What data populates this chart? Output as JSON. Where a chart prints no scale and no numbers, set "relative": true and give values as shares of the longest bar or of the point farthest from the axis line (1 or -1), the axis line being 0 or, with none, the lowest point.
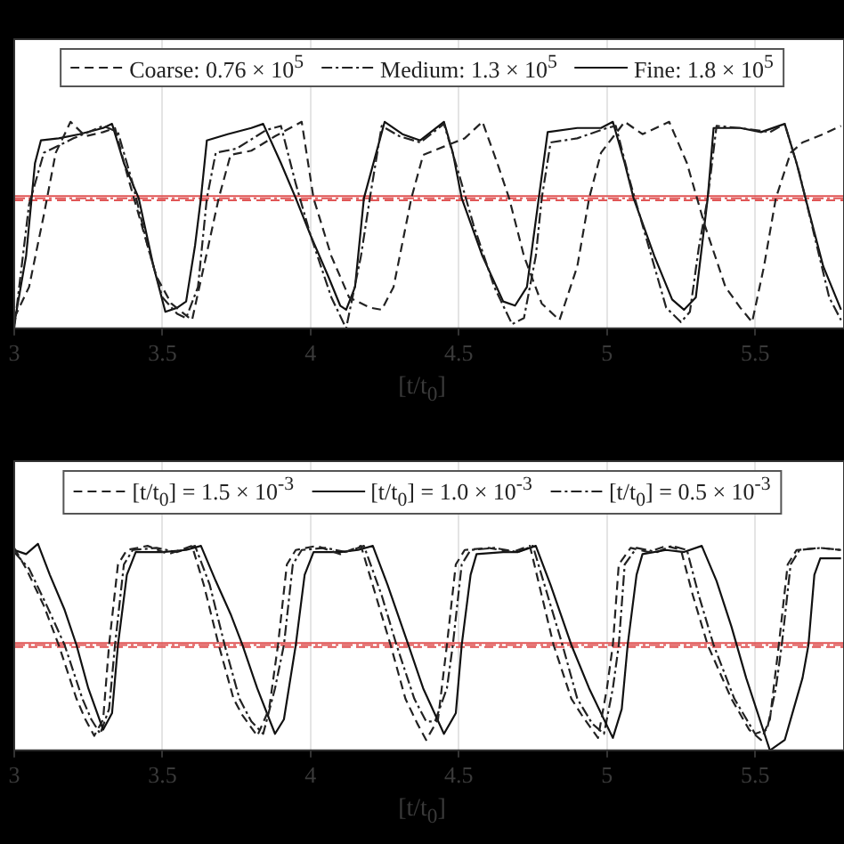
{
  "chart_data": [
    {
      "type": "line",
      "relative": true,
      "xlabel": "[t/t$_{0}$]",
      "xlim": [
        3,
        5.8
      ],
      "xticks": [
        3,
        3.5,
        4,
        4.5,
        5,
        5.5
      ],
      "grid": "x",
      "legend": "top",
      "marker": "none",
      "series": [
        {
          "name": "Coarse: 0.76 × 10$^{5}$",
          "color": "#222222",
          "line_style": "dashed",
          "x": [
            3.0,
            3.05,
            3.1,
            3.14,
            3.19,
            3.24,
            3.3,
            3.34,
            3.38,
            3.43,
            3.48,
            3.53,
            3.6,
            3.64,
            3.69,
            3.73,
            3.8,
            3.88,
            3.97,
            4.01,
            4.07,
            4.13,
            4.2,
            4.24,
            4.28,
            4.34,
            4.38,
            4.45,
            4.52,
            4.58,
            4.63,
            4.67,
            4.72,
            4.78,
            4.84,
            4.9,
            4.94,
            4.98,
            5.06,
            5.12,
            5.21,
            5.27,
            5.33,
            5.4,
            5.45,
            5.49,
            5.53,
            5.57,
            5.62,
            5.66,
            5.73,
            5.79
          ],
          "values": [
            0.05,
            0.2,
            0.55,
            0.85,
            1.0,
            0.93,
            0.95,
            0.97,
            0.75,
            0.5,
            0.25,
            0.12,
            0.04,
            0.3,
            0.63,
            0.84,
            0.86,
            0.93,
            1.0,
            0.63,
            0.35,
            0.15,
            0.1,
            0.09,
            0.2,
            0.63,
            0.84,
            0.88,
            0.92,
            1.0,
            0.8,
            0.63,
            0.35,
            0.12,
            0.04,
            0.3,
            0.63,
            0.85,
            1.0,
            0.94,
            1.0,
            0.8,
            0.5,
            0.2,
            0.1,
            0.03,
            0.3,
            0.63,
            0.85,
            0.9,
            0.94,
            0.98
          ]
        },
        {
          "name": "Medium: 1.3 × 10$^{5}$",
          "color": "#222222",
          "line_style": "dotted",
          "x": [
            3.0,
            3.05,
            3.1,
            3.2,
            3.3,
            3.35,
            3.4,
            3.45,
            3.5,
            3.55,
            3.58,
            3.62,
            3.65,
            3.68,
            3.75,
            3.85,
            3.9,
            3.95,
            4.0,
            4.07,
            4.12,
            4.17,
            4.2,
            4.24,
            4.3,
            4.37,
            4.45,
            4.5,
            4.55,
            4.62,
            4.68,
            4.72,
            4.76,
            4.78,
            4.81,
            4.9,
            5.0,
            5.03,
            5.08,
            5.14,
            5.2,
            5.25,
            5.28,
            5.31,
            5.34,
            5.37,
            5.45,
            5.55,
            5.6,
            5.65,
            5.7,
            5.75,
            5.79
          ],
          "values": [
            0.0,
            0.6,
            0.85,
            0.92,
            0.98,
            0.95,
            0.7,
            0.4,
            0.15,
            0.07,
            0.05,
            0.2,
            0.63,
            0.85,
            0.87,
            0.96,
            0.98,
            0.7,
            0.45,
            0.15,
            0.0,
            0.35,
            0.63,
            0.98,
            0.93,
            0.9,
            0.99,
            0.75,
            0.5,
            0.2,
            0.02,
            0.05,
            0.35,
            0.63,
            0.9,
            0.92,
            0.97,
            0.98,
            0.7,
            0.4,
            0.1,
            0.03,
            0.08,
            0.39,
            0.63,
            0.98,
            0.97,
            0.95,
            0.99,
            0.75,
            0.45,
            0.15,
            0.04
          ]
        },
        {
          "name": "Fine: 1.8 × 10$^{5}$",
          "color": "#111111",
          "line_style": "solid",
          "x": [
            3.0,
            3.04,
            3.07,
            3.09,
            3.15,
            3.22,
            3.3,
            3.33,
            3.37,
            3.42,
            3.47,
            3.51,
            3.55,
            3.58,
            3.61,
            3.63,
            3.65,
            3.72,
            3.8,
            3.84,
            3.9,
            3.95,
            4.0,
            4.06,
            4.1,
            4.12,
            4.15,
            4.18,
            4.25,
            4.31,
            4.37,
            4.45,
            4.48,
            4.51,
            4.58,
            4.65,
            4.69,
            4.73,
            4.77,
            4.8,
            4.9,
            4.98,
            5.02,
            5.06,
            5.09,
            5.16,
            5.22,
            5.26,
            5.3,
            5.34,
            5.36,
            5.45,
            5.52,
            5.6,
            5.64,
            5.67,
            5.73,
            5.79
          ],
          "values": [
            0.02,
            0.35,
            0.8,
            0.91,
            0.92,
            0.94,
            0.97,
            0.99,
            0.8,
            0.63,
            0.3,
            0.08,
            0.1,
            0.13,
            0.4,
            0.63,
            0.91,
            0.94,
            0.97,
            0.99,
            0.8,
            0.63,
            0.45,
            0.25,
            0.11,
            0.09,
            0.2,
            0.63,
            1.0,
            0.94,
            0.91,
            1.0,
            0.85,
            0.63,
            0.35,
            0.13,
            0.11,
            0.2,
            0.63,
            0.95,
            0.97,
            0.97,
            1.0,
            0.8,
            0.63,
            0.35,
            0.14,
            0.09,
            0.15,
            0.63,
            0.97,
            0.97,
            0.95,
            0.99,
            0.8,
            0.63,
            0.3,
            0.09
          ]
        }
      ],
      "ref_lines": [
        {
          "axis": "y",
          "value": 0.62,
          "color": "#e05555",
          "line_style": "dashed"
        },
        {
          "axis": "y",
          "value": 0.63,
          "color": "#e05555",
          "line_style": "dotted"
        },
        {
          "axis": "y",
          "value": 0.64,
          "color": "#e05555",
          "line_style": "solid"
        }
      ]
    },
    {
      "type": "line",
      "relative": true,
      "xlabel": "[t/t$_{0}$]",
      "xlim": [
        3,
        5.8
      ],
      "xticks": [
        3,
        3.5,
        4,
        4.5,
        5,
        5.5
      ],
      "grid": "x",
      "legend": "top",
      "marker": "none",
      "series": [
        {
          "name": "[t/t$_{0}$] = 1.5 × 10$^{-3}$",
          "color": "#222222",
          "line_style": "dashed",
          "x": [
            3.0,
            3.04,
            3.1,
            3.15,
            3.21,
            3.24,
            3.27,
            3.3,
            3.32,
            3.35,
            3.38,
            3.45,
            3.52,
            3.6,
            3.64,
            3.69,
            3.74,
            3.77,
            3.82,
            3.86,
            3.89,
            3.92,
            3.95,
            4.02,
            4.1,
            4.17,
            4.22,
            4.27,
            4.32,
            4.36,
            4.39,
            4.43,
            4.46,
            4.49,
            4.52,
            4.6,
            4.68,
            4.74,
            4.78,
            4.82,
            4.88,
            4.92,
            4.97,
            5.0,
            5.02,
            5.04,
            5.08,
            5.14,
            5.2,
            5.25,
            5.29,
            5.34,
            5.42,
            5.48,
            5.52,
            5.55,
            5.58,
            5.61,
            5.64,
            5.72,
            5.79
          ],
          "values": [
            0.98,
            0.88,
            0.7,
            0.51,
            0.25,
            0.15,
            0.07,
            0.15,
            0.51,
            0.9,
            0.97,
            0.99,
            0.95,
            0.99,
            0.8,
            0.51,
            0.25,
            0.17,
            0.07,
            0.2,
            0.51,
            0.9,
            0.97,
            0.99,
            0.95,
            0.99,
            0.75,
            0.51,
            0.25,
            0.13,
            0.05,
            0.15,
            0.51,
            0.9,
            0.97,
            0.98,
            0.96,
            0.99,
            0.75,
            0.51,
            0.25,
            0.16,
            0.06,
            0.3,
            0.51,
            0.9,
            0.98,
            0.96,
            0.99,
            0.97,
            0.75,
            0.51,
            0.25,
            0.1,
            0.05,
            0.15,
            0.51,
            0.9,
            0.97,
            0.98,
            0.97
          ]
        },
        {
          "name": "[t/t$_{0}$] = 1.0 × 10$^{-3}$",
          "color": "#111111",
          "line_style": "solid",
          "x": [
            3.0,
            3.04,
            3.08,
            3.12,
            3.17,
            3.21,
            3.25,
            3.3,
            3.33,
            3.35,
            3.38,
            3.41,
            3.5,
            3.58,
            3.63,
            3.68,
            3.73,
            3.77,
            3.82,
            3.88,
            3.91,
            3.95,
            3.98,
            4.01,
            4.1,
            4.16,
            4.21,
            4.26,
            4.33,
            4.38,
            4.45,
            4.49,
            4.51,
            4.54,
            4.56,
            4.65,
            4.7,
            4.76,
            4.81,
            4.88,
            4.94,
            5.02,
            5.05,
            5.07,
            5.1,
            5.12,
            5.2,
            5.26,
            5.32,
            5.37,
            5.42,
            5.47,
            5.55,
            5.6,
            5.63,
            5.66,
            5.68,
            5.7,
            5.72,
            5.79
          ],
          "values": [
            0.97,
            0.95,
            1.0,
            0.85,
            0.68,
            0.51,
            0.3,
            0.1,
            0.18,
            0.51,
            0.85,
            0.96,
            0.96,
            0.97,
            0.99,
            0.82,
            0.66,
            0.51,
            0.3,
            0.08,
            0.15,
            0.51,
            0.85,
            0.96,
            0.96,
            0.97,
            0.99,
            0.8,
            0.51,
            0.3,
            0.08,
            0.18,
            0.51,
            0.85,
            0.95,
            0.96,
            0.96,
            0.99,
            0.8,
            0.51,
            0.3,
            0.06,
            0.2,
            0.51,
            0.85,
            0.95,
            0.97,
            0.96,
            0.99,
            0.82,
            0.6,
            0.35,
            0.0,
            0.05,
            0.2,
            0.35,
            0.51,
            0.85,
            0.93,
            0.93
          ]
        },
        {
          "name": "[t/t$_{0}$] = 0.5 × 10$^{-3}$",
          "color": "#222222",
          "line_style": "dotted",
          "x": [
            3.0,
            3.05,
            3.11,
            3.17,
            3.23,
            3.26,
            3.29,
            3.32,
            3.34,
            3.37,
            3.4,
            3.48,
            3.55,
            3.61,
            3.66,
            3.71,
            3.76,
            3.8,
            3.84,
            3.88,
            3.91,
            3.94,
            3.97,
            4.05,
            4.12,
            4.18,
            4.24,
            4.29,
            4.35,
            4.39,
            4.42,
            4.46,
            4.48,
            4.51,
            4.54,
            4.62,
            4.7,
            4.75,
            4.8,
            4.85,
            4.9,
            4.95,
            4.99,
            5.02,
            5.04,
            5.06,
            5.1,
            5.17,
            5.22,
            5.27,
            5.31,
            5.36,
            5.43,
            5.5,
            5.54,
            5.57,
            5.59,
            5.62,
            5.65,
            5.72,
            5.79
          ],
          "values": [
            0.96,
            0.88,
            0.7,
            0.51,
            0.25,
            0.15,
            0.08,
            0.2,
            0.51,
            0.9,
            0.97,
            0.98,
            0.96,
            0.99,
            0.8,
            0.51,
            0.25,
            0.14,
            0.08,
            0.3,
            0.51,
            0.9,
            0.97,
            0.98,
            0.96,
            0.99,
            0.75,
            0.51,
            0.25,
            0.14,
            0.14,
            0.3,
            0.51,
            0.9,
            0.97,
            0.98,
            0.96,
            0.99,
            0.75,
            0.51,
            0.25,
            0.13,
            0.08,
            0.3,
            0.51,
            0.9,
            0.98,
            0.96,
            0.99,
            0.97,
            0.75,
            0.51,
            0.25,
            0.08,
            0.1,
            0.3,
            0.51,
            0.9,
            0.97,
            0.98,
            0.97
          ]
        }
      ],
      "ref_lines": [
        {
          "axis": "y",
          "value": 0.5,
          "color": "#e05555",
          "line_style": "dashed"
        },
        {
          "axis": "y",
          "value": 0.51,
          "color": "#e05555",
          "line_style": "dotted"
        },
        {
          "axis": "y",
          "value": 0.52,
          "color": "#e05555",
          "line_style": "solid"
        }
      ]
    }
  ]
}
